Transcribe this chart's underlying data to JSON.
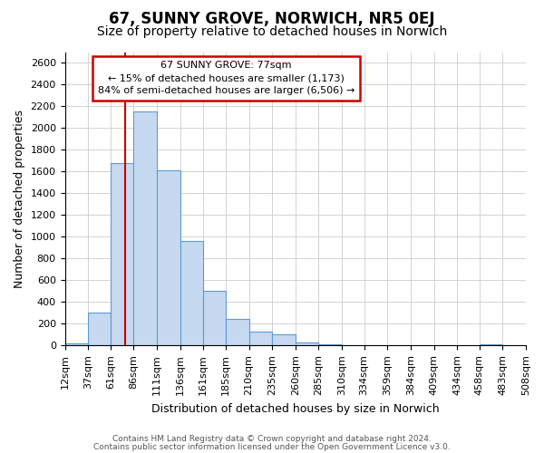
{
  "title": "67, SUNNY GROVE, NORWICH, NR5 0EJ",
  "subtitle": "Size of property relative to detached houses in Norwich",
  "xlabel": "Distribution of detached houses by size in Norwich",
  "ylabel": "Number of detached properties",
  "bar_color": "#c6d9f0",
  "bar_edge_color": "#5b9bd5",
  "vline_color": "#cc0000",
  "vline_x": 77,
  "annotation_line1": "67 SUNNY GROVE: 77sqm",
  "annotation_line2": "← 15% of detached houses are smaller (1,173)",
  "annotation_line3": "84% of semi-detached houses are larger (6,506) →",
  "annotation_box_color": "white",
  "annotation_box_edge": "#cc0000",
  "footer1": "Contains HM Land Registry data © Crown copyright and database right 2024.",
  "footer2": "Contains public sector information licensed under the Open Government Licence v3.0.",
  "bin_edges": [
    12,
    37,
    61,
    86,
    111,
    136,
    161,
    185,
    210,
    235,
    260,
    285,
    310,
    334,
    359,
    384,
    409,
    434,
    458,
    483,
    508
  ],
  "bin_labels": [
    "12sqm",
    "37sqm",
    "61sqm",
    "86sqm",
    "111sqm",
    "136sqm",
    "161sqm",
    "185sqm",
    "210sqm",
    "235sqm",
    "260sqm",
    "285sqm",
    "310sqm",
    "334sqm",
    "359sqm",
    "384sqm",
    "409sqm",
    "434sqm",
    "458sqm",
    "483sqm",
    "508sqm"
  ],
  "counts": [
    20,
    300,
    1680,
    2150,
    1610,
    960,
    505,
    245,
    125,
    100,
    30,
    15,
    5,
    3,
    2,
    2,
    2,
    1,
    15,
    1
  ],
  "ylim": [
    0,
    2700
  ],
  "yticks": [
    0,
    200,
    400,
    600,
    800,
    1000,
    1200,
    1400,
    1600,
    1800,
    2000,
    2200,
    2400,
    2600
  ],
  "grid_color": "#cccccc",
  "background_color": "#ffffff",
  "title_fontsize": 12,
  "subtitle_fontsize": 10,
  "ylabel_fontsize": 9,
  "xlabel_fontsize": 9,
  "tick_fontsize": 8,
  "annotation_fontsize": 8,
  "footer_fontsize": 6.5
}
